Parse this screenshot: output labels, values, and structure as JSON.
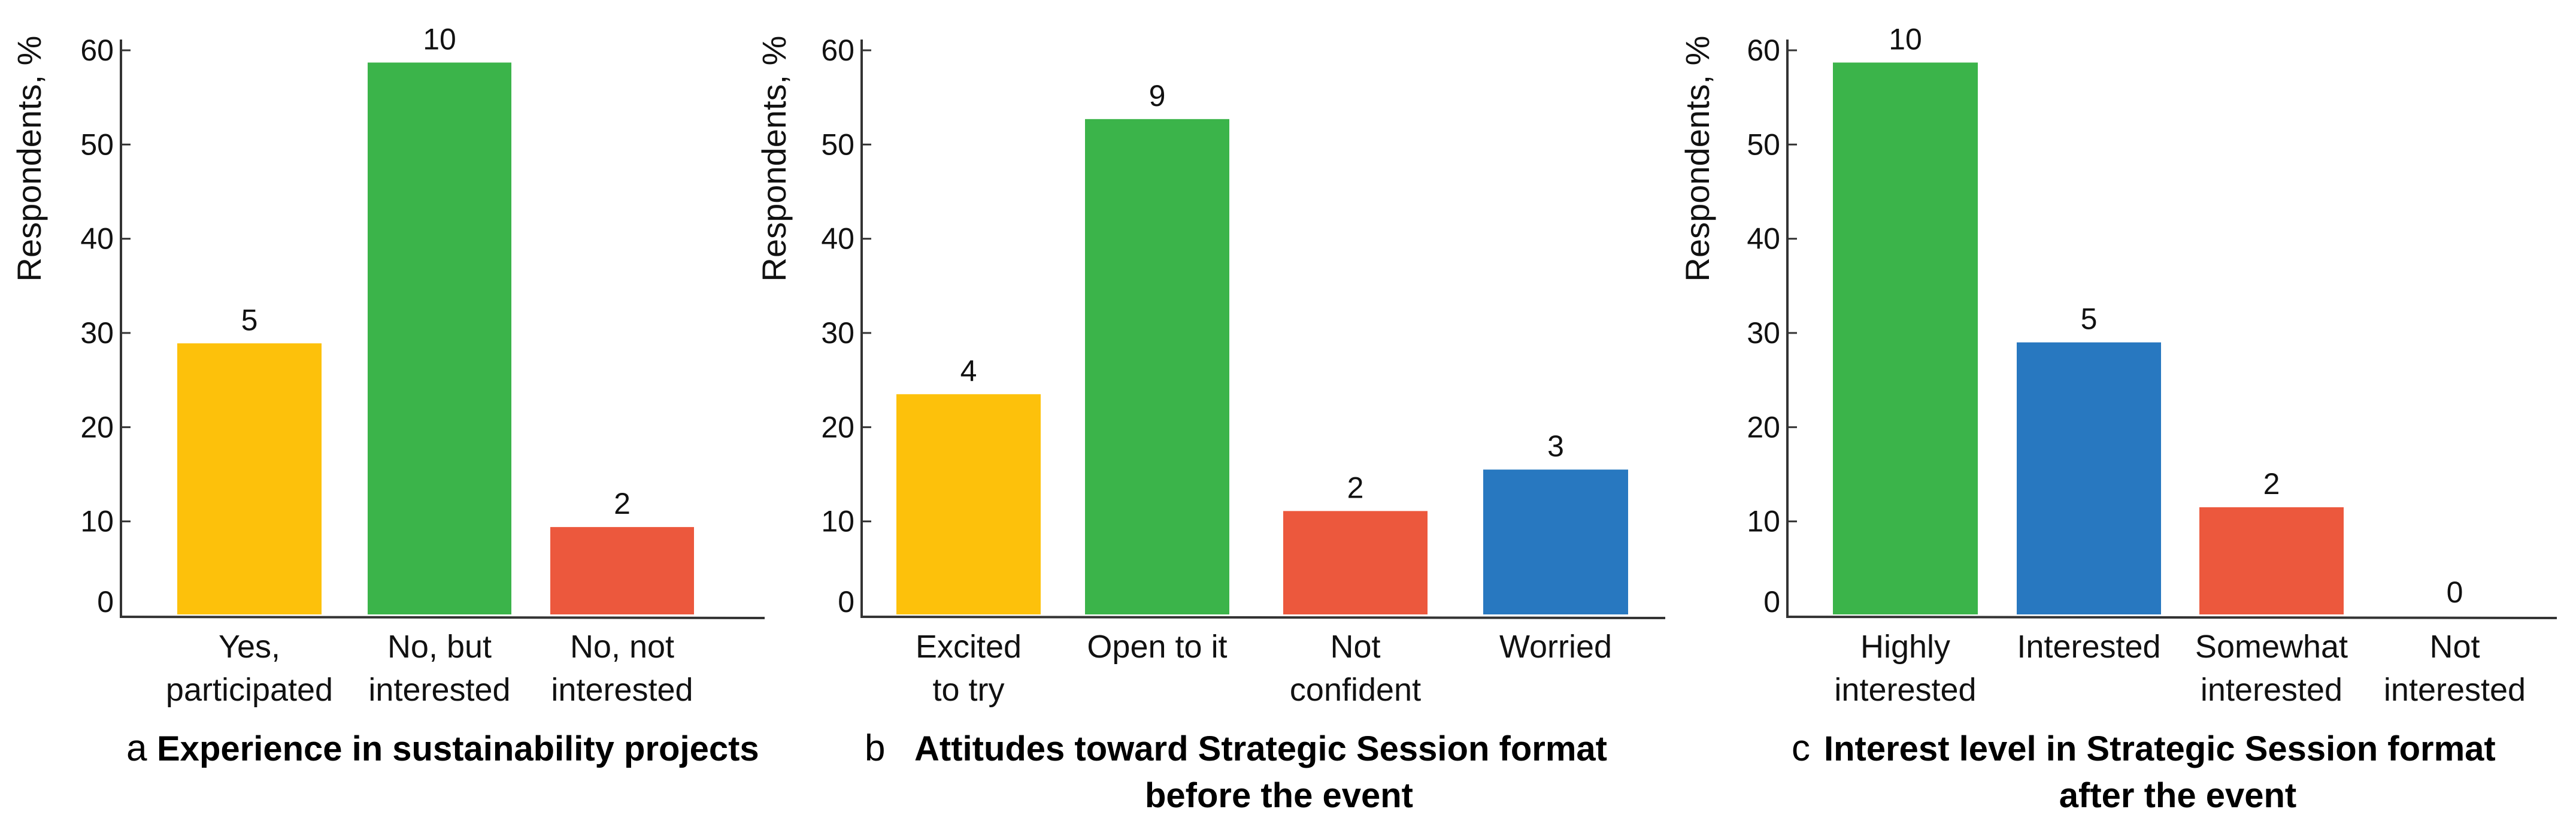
{
  "chart_data": [
    {
      "type": "bar",
      "panel_letter": "a",
      "title": "Experience in sustainability projects",
      "ylabel": "Respondents, %",
      "ylim": [
        0,
        60
      ],
      "yticks": [
        0,
        10,
        20,
        30,
        40,
        50,
        60
      ],
      "grid": false,
      "categories": [
        [
          "Yes,",
          "participated"
        ],
        [
          "No, but",
          "interested"
        ],
        [
          "No, not",
          "interested"
        ]
      ],
      "values": [
        28.9,
        58.7,
        9.4
      ],
      "data_labels": [
        "5",
        "10",
        "2"
      ],
      "colors": [
        "#FDC10B",
        "#3BB44A",
        "#EC583D"
      ]
    },
    {
      "type": "bar",
      "panel_letter": "b",
      "title": [
        "Attitudes toward Strategic Session format",
        "before the event"
      ],
      "ylabel": "Respondents, %",
      "ylim": [
        0,
        60
      ],
      "yticks": [
        0,
        10,
        20,
        30,
        40,
        50,
        60
      ],
      "grid": false,
      "categories": [
        [
          "Excited",
          "to try"
        ],
        [
          "Open to it"
        ],
        [
          "Not",
          "confident"
        ],
        [
          "Worried"
        ]
      ],
      "values": [
        23.5,
        52.7,
        11.1,
        15.5
      ],
      "data_labels": [
        "4",
        "9",
        "2",
        "3"
      ],
      "colors": [
        "#FDC10B",
        "#3BB44A",
        "#EC583D",
        "#2878C0"
      ]
    },
    {
      "type": "bar",
      "panel_letter": "c",
      "title": [
        "Interest level in Strategic Session format",
        "after the event"
      ],
      "ylabel": "Respondents, %",
      "ylim": [
        0,
        60
      ],
      "yticks": [
        0,
        10,
        20,
        30,
        40,
        50,
        60
      ],
      "grid": false,
      "categories": [
        [
          "Highly",
          "interested"
        ],
        [
          "Interested"
        ],
        [
          "Somewhat",
          "interested"
        ],
        [
          "Not",
          "interested"
        ]
      ],
      "values": [
        58.7,
        29.0,
        11.5,
        0
      ],
      "data_labels": [
        "10",
        "5",
        "2",
        "0"
      ],
      "colors": [
        "#3BB44A",
        "#2878C0",
        "#EC583D",
        "#2878C0"
      ]
    }
  ]
}
